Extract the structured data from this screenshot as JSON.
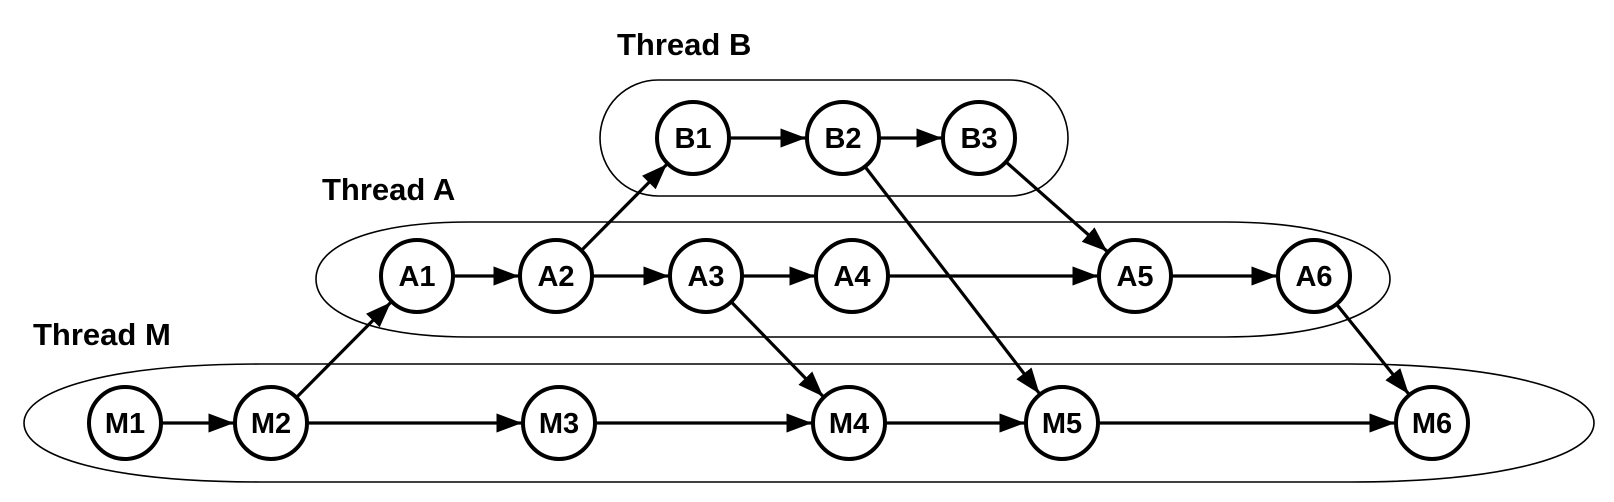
{
  "threads": [
    {
      "id": "B",
      "label": "Thread B"
    },
    {
      "id": "A",
      "label": "Thread A"
    },
    {
      "id": "M",
      "label": "Thread M"
    }
  ],
  "nodes": [
    {
      "id": "B1",
      "label": "B1",
      "thread": "B"
    },
    {
      "id": "B2",
      "label": "B2",
      "thread": "B"
    },
    {
      "id": "B3",
      "label": "B3",
      "thread": "B"
    },
    {
      "id": "A1",
      "label": "A1",
      "thread": "A"
    },
    {
      "id": "A2",
      "label": "A2",
      "thread": "A"
    },
    {
      "id": "A3",
      "label": "A3",
      "thread": "A"
    },
    {
      "id": "A4",
      "label": "A4",
      "thread": "A"
    },
    {
      "id": "A5",
      "label": "A5",
      "thread": "A"
    },
    {
      "id": "A6",
      "label": "A6",
      "thread": "A"
    },
    {
      "id": "M1",
      "label": "M1",
      "thread": "M"
    },
    {
      "id": "M2",
      "label": "M2",
      "thread": "M"
    },
    {
      "id": "M3",
      "label": "M3",
      "thread": "M"
    },
    {
      "id": "M4",
      "label": "M4",
      "thread": "M"
    },
    {
      "id": "M5",
      "label": "M5",
      "thread": "M"
    },
    {
      "id": "M6",
      "label": "M6",
      "thread": "M"
    }
  ],
  "edges": [
    {
      "from": "B1",
      "to": "B2"
    },
    {
      "from": "B2",
      "to": "B3"
    },
    {
      "from": "A1",
      "to": "A2"
    },
    {
      "from": "A2",
      "to": "A3"
    },
    {
      "from": "A3",
      "to": "A4"
    },
    {
      "from": "A4",
      "to": "A5"
    },
    {
      "from": "A5",
      "to": "A6"
    },
    {
      "from": "M1",
      "to": "M2"
    },
    {
      "from": "M2",
      "to": "M3"
    },
    {
      "from": "M3",
      "to": "M4"
    },
    {
      "from": "M4",
      "to": "M5"
    },
    {
      "from": "M5",
      "to": "M6"
    },
    {
      "from": "M2",
      "to": "A1"
    },
    {
      "from": "A2",
      "to": "B1"
    },
    {
      "from": "B2",
      "to": "M5"
    },
    {
      "from": "B3",
      "to": "A5"
    },
    {
      "from": "A3",
      "to": "M4"
    },
    {
      "from": "A6",
      "to": "M6"
    }
  ]
}
